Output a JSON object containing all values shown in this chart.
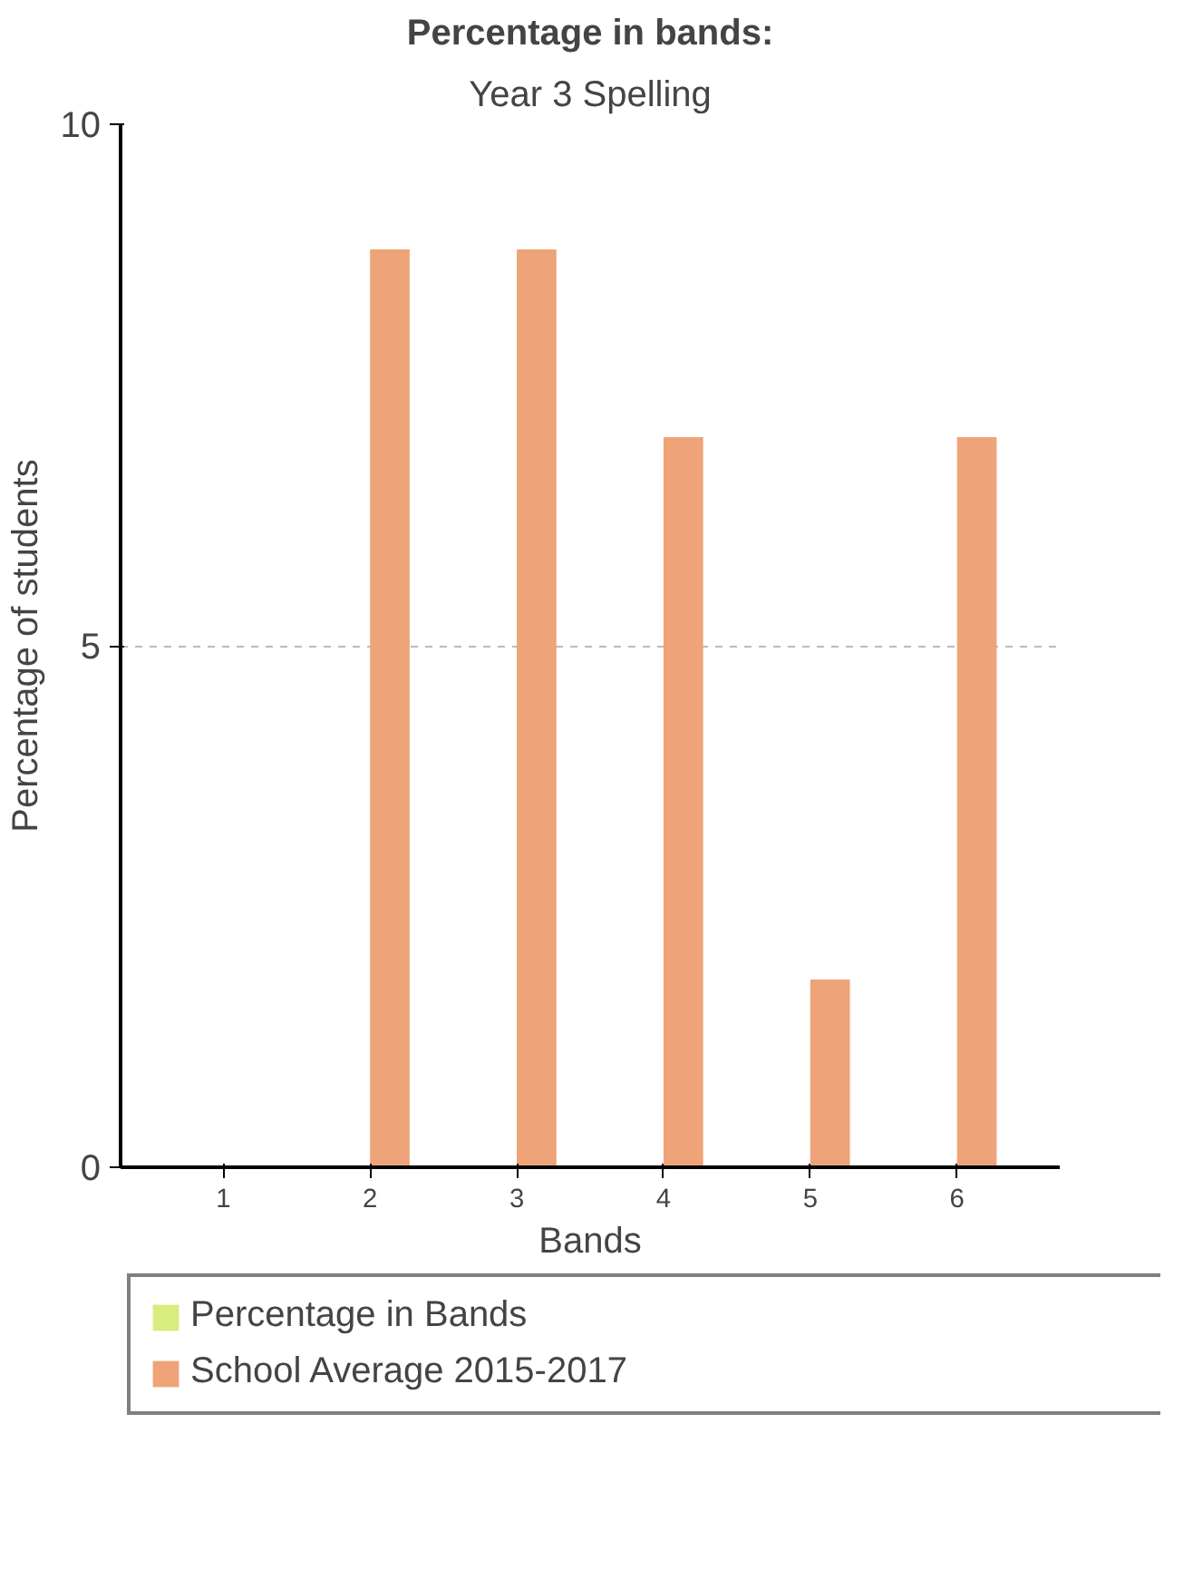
{
  "chart_data": {
    "type": "bar",
    "title": "Percentage in bands:",
    "subtitle": "Year 3 Spelling",
    "xlabel": "Bands",
    "ylabel": "Percentage of students",
    "categories": [
      "1",
      "2",
      "3",
      "4",
      "5",
      "6"
    ],
    "series": [
      {
        "name": "Percentage in Bands",
        "color": "#d9ec7e",
        "values": [
          0,
          0,
          0,
          0,
          0,
          0
        ]
      },
      {
        "name": "School Average 2015-2017",
        "color": "#efa378",
        "values": [
          0,
          8.8,
          8.8,
          7.0,
          1.8,
          7.0
        ]
      }
    ],
    "ylim": [
      0,
      10
    ],
    "yticks": [
      0,
      5,
      10
    ],
    "grid": "y",
    "legend": "bottom"
  }
}
